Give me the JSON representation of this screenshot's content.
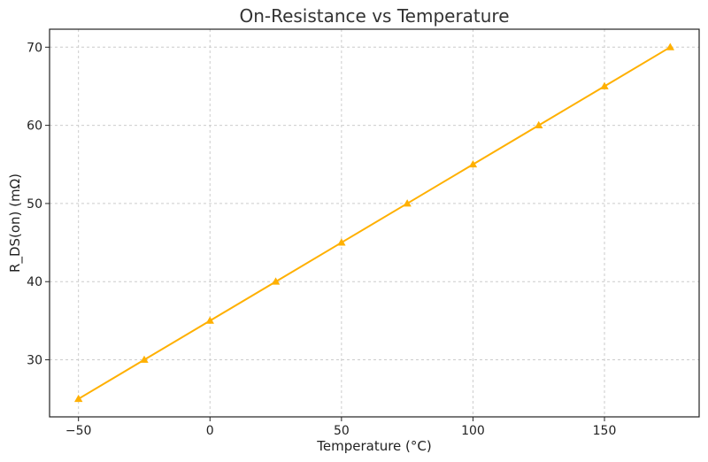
{
  "chart_data": {
    "type": "line",
    "title": "On-Resistance vs Temperature",
    "xlabel": "Temperature (°C)",
    "ylabel": "R_DS(on) (mΩ)",
    "xlim": [
      -61,
      186
    ],
    "ylim": [
      22.7,
      72.3
    ],
    "xticks": [
      -50,
      0,
      50,
      100,
      150
    ],
    "xtick_labels": [
      "−50",
      "0",
      "50",
      "100",
      "150"
    ],
    "yticks": [
      30,
      40,
      50,
      60,
      70
    ],
    "ytick_labels": [
      "30",
      "40",
      "50",
      "60",
      "70"
    ],
    "grid": true,
    "grid_style": "dashed",
    "marker": "triangle",
    "color": "#FFB000",
    "series": [
      {
        "x": [
          -50,
          -25,
          0,
          25,
          50,
          75,
          100,
          125,
          150,
          175
        ],
        "y": [
          25,
          30,
          35,
          40,
          45,
          50,
          55,
          60,
          65,
          70
        ]
      }
    ]
  }
}
